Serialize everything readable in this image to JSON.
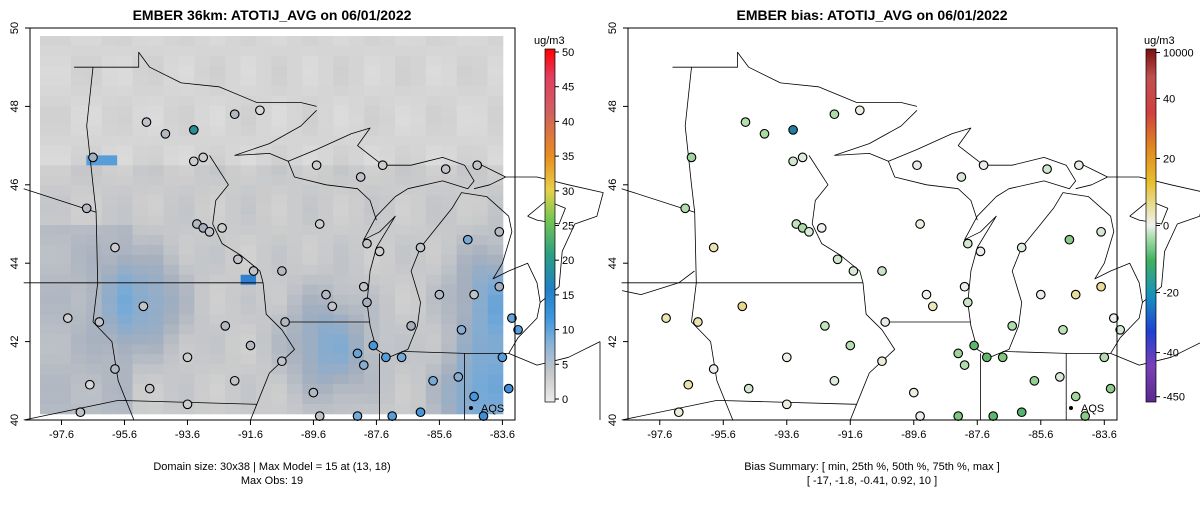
{
  "chart_data": [
    {
      "type": "heatmap",
      "title": "EMBER 36km: ATOTIJ_AVG on 06/01/2022",
      "x_ticks": [
        "-97.6",
        "-95.6",
        "-93.6",
        "-91.6",
        "-89.6",
        "-87.6",
        "-85.6",
        "-83.6"
      ],
      "y_ticks": [
        "40",
        "42",
        "44",
        "46",
        "48",
        "50"
      ],
      "xlim": [
        -98.6,
        -83.2
      ],
      "ylim": [
        40,
        50
      ],
      "colorbar": {
        "unit": "ug/m3",
        "ticks": [
          "0",
          "5",
          "10",
          "15",
          "20",
          "25",
          "30",
          "35",
          "40",
          "45",
          "50"
        ],
        "range": [
          0,
          50
        ]
      },
      "annotation": "AQS",
      "footer": [
        "Domain size: 30x38 | Max Model = 15 at (13, 18)",
        "Max Obs: 19"
      ],
      "stations": [
        {
          "lon": -96.6,
          "lat": 46.7,
          "value": 6
        },
        {
          "lon": -94.9,
          "lat": 47.6,
          "value": 4
        },
        {
          "lon": -94.3,
          "lat": 47.3,
          "value": 5
        },
        {
          "lon": -93.4,
          "lat": 47.4,
          "value": 19
        },
        {
          "lon": -93.4,
          "lat": 46.6,
          "value": 3
        },
        {
          "lon": -93.1,
          "lat": 46.7,
          "value": 3
        },
        {
          "lon": -92.1,
          "lat": 47.8,
          "value": 5
        },
        {
          "lon": -91.3,
          "lat": 47.9,
          "value": 2
        },
        {
          "lon": -89.5,
          "lat": 46.5,
          "value": 3
        },
        {
          "lon": -88.1,
          "lat": 46.2,
          "value": 4
        },
        {
          "lon": -87.4,
          "lat": 46.5,
          "value": 3
        },
        {
          "lon": -85.4,
          "lat": 46.4,
          "value": 4
        },
        {
          "lon": -84.4,
          "lat": 46.5,
          "value": 4
        },
        {
          "lon": -96.8,
          "lat": 45.4,
          "value": 5
        },
        {
          "lon": -95.9,
          "lat": 44.4,
          "value": 3
        },
        {
          "lon": -93.3,
          "lat": 45.0,
          "value": 5
        },
        {
          "lon": -93.1,
          "lat": 44.9,
          "value": 6
        },
        {
          "lon": -92.9,
          "lat": 44.8,
          "value": 4
        },
        {
          "lon": -92.5,
          "lat": 44.9,
          "value": 3
        },
        {
          "lon": -92.0,
          "lat": 44.1,
          "value": 4
        },
        {
          "lon": -91.5,
          "lat": 43.8,
          "value": 4
        },
        {
          "lon": -90.6,
          "lat": 43.8,
          "value": 5
        },
        {
          "lon": -89.4,
          "lat": 45.0,
          "value": 3
        },
        {
          "lon": -87.9,
          "lat": 44.5,
          "value": 4
        },
        {
          "lon": -87.5,
          "lat": 44.3,
          "value": 3
        },
        {
          "lon": -88.0,
          "lat": 43.4,
          "value": 4
        },
        {
          "lon": -87.9,
          "lat": 43.0,
          "value": 6
        },
        {
          "lon": -89.2,
          "lat": 43.2,
          "value": 5
        },
        {
          "lon": -89.0,
          "lat": 42.9,
          "value": 4
        },
        {
          "lon": -86.2,
          "lat": 44.4,
          "value": 4
        },
        {
          "lon": -84.7,
          "lat": 44.6,
          "value": 9
        },
        {
          "lon": -83.7,
          "lat": 44.8,
          "value": 5
        },
        {
          "lon": -85.6,
          "lat": 43.2,
          "value": 5
        },
        {
          "lon": -84.5,
          "lat": 43.2,
          "value": 4
        },
        {
          "lon": -83.7,
          "lat": 43.4,
          "value": 6
        },
        {
          "lon": -83.3,
          "lat": 42.6,
          "value": 10
        },
        {
          "lon": -83.1,
          "lat": 42.3,
          "value": 11
        },
        {
          "lon": -84.9,
          "lat": 42.3,
          "value": 8
        },
        {
          "lon": -86.5,
          "lat": 42.4,
          "value": 6
        },
        {
          "lon": -87.7,
          "lat": 41.9,
          "value": 12
        },
        {
          "lon": -88.2,
          "lat": 41.7,
          "value": 10
        },
        {
          "lon": -88.0,
          "lat": 41.4,
          "value": 8
        },
        {
          "lon": -87.3,
          "lat": 41.6,
          "value": 11
        },
        {
          "lon": -86.8,
          "lat": 41.6,
          "value": 9
        },
        {
          "lon": -85.8,
          "lat": 41.0,
          "value": 9
        },
        {
          "lon": -85.0,
          "lat": 41.1,
          "value": 8
        },
        {
          "lon": -84.5,
          "lat": 40.6,
          "value": 12
        },
        {
          "lon": -84.2,
          "lat": 40.1,
          "value": 13
        },
        {
          "lon": -83.6,
          "lat": 41.6,
          "value": 11
        },
        {
          "lon": -83.4,
          "lat": 40.8,
          "value": 13
        },
        {
          "lon": -86.2,
          "lat": 40.2,
          "value": 12
        },
        {
          "lon": -87.1,
          "lat": 40.1,
          "value": 11
        },
        {
          "lon": -88.2,
          "lat": 40.1,
          "value": 9
        },
        {
          "lon": -89.6,
          "lat": 40.7,
          "value": 5
        },
        {
          "lon": -90.6,
          "lat": 41.5,
          "value": 4
        },
        {
          "lon": -91.6,
          "lat": 41.9,
          "value": 5
        },
        {
          "lon": -92.1,
          "lat": 41.0,
          "value": 4
        },
        {
          "lon": -93.6,
          "lat": 41.6,
          "value": 3
        },
        {
          "lon": -94.8,
          "lat": 40.8,
          "value": 4
        },
        {
          "lon": -95.9,
          "lat": 41.3,
          "value": 5
        },
        {
          "lon": -96.4,
          "lat": 42.5,
          "value": 4
        },
        {
          "lon": -96.7,
          "lat": 40.9,
          "value": 2
        },
        {
          "lon": -97.4,
          "lat": 42.6,
          "value": 3
        },
        {
          "lon": -95.0,
          "lat": 42.9,
          "value": 4
        },
        {
          "lon": -92.4,
          "lat": 42.4,
          "value": 5
        },
        {
          "lon": -90.5,
          "lat": 42.5,
          "value": 5
        },
        {
          "lon": -97.0,
          "lat": 40.2,
          "value": 4
        },
        {
          "lon": -93.6,
          "lat": 40.4,
          "value": 3
        },
        {
          "lon": -89.4,
          "lat": 40.1,
          "value": 4
        }
      ]
    },
    {
      "type": "scatter",
      "title": "EMBER bias: ATOTIJ_AVG on 06/01/2022",
      "x_ticks": [
        "-97.6",
        "-95.6",
        "-93.6",
        "-91.6",
        "-89.6",
        "-87.6",
        "-85.6",
        "-83.6"
      ],
      "y_ticks": [
        "40",
        "42",
        "44",
        "46",
        "48",
        "50"
      ],
      "xlim": [
        -98.6,
        -83.2
      ],
      "ylim": [
        40,
        50
      ],
      "colorbar": {
        "unit": "ug/m3",
        "ticks": [
          "10000",
          "40",
          "20",
          "0",
          "-20",
          "-40",
          "-450"
        ]
      },
      "annotation": "AQS",
      "footer": [
        "Bias Summary: [ min, 25th %, 50th %, 75th %, max ]",
        "[ -17,   -1.8,   -0.41,   0.92,   10 ]"
      ]
    }
  ]
}
